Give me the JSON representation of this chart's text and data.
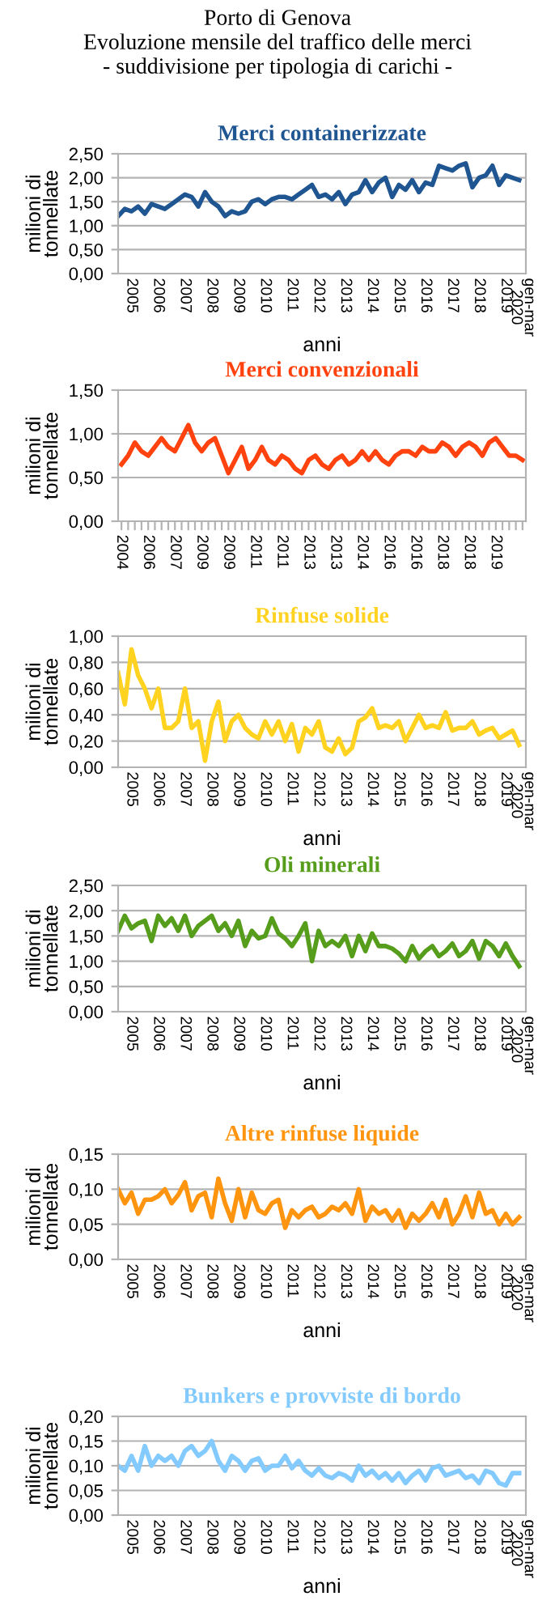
{
  "chart_data": [
    {
      "type": "line",
      "title": "Merci containerizzate",
      "annotations": [
        "Porto di Genova",
        "Evoluzione mensile del traffico delle merci",
        "- suddivisione per tipologia di carichi -"
      ],
      "xlabel": "anni",
      "ylabel": "milioni di tonnellate",
      "grid": "y",
      "xlim": [
        2005,
        2020.25
      ],
      "ylim": [
        0,
        2.5
      ],
      "yticks": [
        {
          "value": 0,
          "label": "0,00"
        },
        {
          "value": 0.5,
          "label": "0,50"
        },
        {
          "value": 1,
          "label": "1,00"
        },
        {
          "value": 1.5,
          "label": "1,50"
        },
        {
          "value": 2,
          "label": "2,00"
        },
        {
          "value": 2.5,
          "label": "2,50"
        }
      ],
      "xticks": [
        {
          "value": 2005.5,
          "label": "2005"
        },
        {
          "value": 2006.5,
          "label": "2006"
        },
        {
          "value": 2007.5,
          "label": "2007"
        },
        {
          "value": 2008.5,
          "label": "2008"
        },
        {
          "value": 2009.5,
          "label": "2009"
        },
        {
          "value": 2010.5,
          "label": "2010"
        },
        {
          "value": 2011.5,
          "label": "2011"
        },
        {
          "value": 2012.5,
          "label": "2012"
        },
        {
          "value": 2013.5,
          "label": "2013"
        },
        {
          "value": 2014.5,
          "label": "2014"
        },
        {
          "value": 2015.5,
          "label": "2015"
        },
        {
          "value": 2016.5,
          "label": "2016"
        },
        {
          "value": 2017.5,
          "label": "2017"
        },
        {
          "value": 2018.5,
          "label": "2018"
        },
        {
          "value": 2019.5,
          "label": "2019"
        },
        {
          "value": 2020.125,
          "label": "gen-mar\n2020"
        }
      ],
      "x": [
        2005,
        2005.25,
        2005.5,
        2005.75,
        2006,
        2006.25,
        2006.5,
        2006.75,
        2007,
        2007.25,
        2007.5,
        2007.75,
        2008,
        2008.25,
        2008.5,
        2008.75,
        2009,
        2009.25,
        2009.5,
        2009.75,
        2010,
        2010.25,
        2010.5,
        2010.75,
        2011,
        2011.25,
        2011.5,
        2011.75,
        2012,
        2012.25,
        2012.5,
        2012.75,
        2013,
        2013.25,
        2013.5,
        2013.75,
        2014,
        2014.25,
        2014.5,
        2014.75,
        2015,
        2015.25,
        2015.5,
        2015.75,
        2016,
        2016.25,
        2016.5,
        2016.75,
        2017,
        2017.25,
        2017.5,
        2017.75,
        2018,
        2018.25,
        2018.5,
        2018.75,
        2019,
        2019.25,
        2019.5,
        2019.75,
        2020
      ],
      "series": [
        {
          "color": "#1f5591",
          "values": [
            1.2,
            1.35,
            1.3,
            1.4,
            1.25,
            1.45,
            1.4,
            1.35,
            1.45,
            1.55,
            1.65,
            1.6,
            1.4,
            1.7,
            1.5,
            1.4,
            1.2,
            1.3,
            1.25,
            1.3,
            1.5,
            1.55,
            1.45,
            1.55,
            1.6,
            1.6,
            1.55,
            1.65,
            1.75,
            1.85,
            1.6,
            1.65,
            1.55,
            1.7,
            1.45,
            1.65,
            1.7,
            1.95,
            1.7,
            1.9,
            2.0,
            1.6,
            1.85,
            1.75,
            1.95,
            1.7,
            1.9,
            1.85,
            2.25,
            2.2,
            2.15,
            2.25,
            2.3,
            1.8,
            2.0,
            2.05,
            2.25,
            1.85,
            2.05,
            2.0,
            1.95
          ]
        }
      ]
    },
    {
      "type": "line",
      "title": "Merci convenzionali",
      "ylabel": "milioni di tonnellate",
      "grid": "y",
      "ylim": [
        0,
        1.5
      ],
      "yticks": [
        {
          "value": 0,
          "label": "0,00"
        },
        {
          "value": 0.5,
          "label": "0,50"
        },
        {
          "value": 1,
          "label": "1,00"
        },
        {
          "value": 1.5,
          "label": "1,50"
        }
      ],
      "categories": [
        "2004",
        null,
        null,
        null,
        "2006",
        null,
        null,
        null,
        "2007",
        null,
        null,
        null,
        "2009",
        null,
        null,
        null,
        "2009",
        null,
        null,
        null,
        "2011",
        null,
        null,
        null,
        "2011",
        null,
        null,
        null,
        "2013",
        null,
        null,
        null,
        "2013",
        null,
        null,
        null,
        "2014",
        null,
        null,
        null,
        "2016",
        null,
        null,
        null,
        "2016",
        null,
        null,
        null,
        "2018",
        null,
        null,
        null,
        "2018",
        null,
        null,
        null,
        "2019",
        null,
        null,
        null,
        null
      ],
      "series": [
        {
          "color": "#ff420e",
          "values": [
            0.65,
            0.75,
            0.9,
            0.8,
            0.75,
            0.85,
            0.95,
            0.85,
            0.8,
            0.95,
            1.1,
            0.9,
            0.8,
            0.9,
            0.95,
            0.75,
            0.55,
            0.7,
            0.85,
            0.6,
            0.7,
            0.85,
            0.7,
            0.65,
            0.75,
            0.7,
            0.6,
            0.55,
            0.7,
            0.75,
            0.65,
            0.6,
            0.7,
            0.75,
            0.65,
            0.7,
            0.8,
            0.7,
            0.8,
            0.7,
            0.65,
            0.75,
            0.8,
            0.8,
            0.75,
            0.85,
            0.8,
            0.8,
            0.9,
            0.85,
            0.75,
            0.85,
            0.9,
            0.85,
            0.75,
            0.9,
            0.95,
            0.85,
            0.75,
            0.75,
            0.7
          ]
        }
      ]
    },
    {
      "type": "line",
      "title": "Rinfuse solide",
      "xlabel": "anni",
      "ylabel": "milioni di tonnellate",
      "grid": "y",
      "xlim": [
        2005,
        2020.25
      ],
      "ylim": [
        0,
        1
      ],
      "yticks": [
        {
          "value": 0,
          "label": "0,00"
        },
        {
          "value": 0.2,
          "label": "0,20"
        },
        {
          "value": 0.4,
          "label": "0,40"
        },
        {
          "value": 0.6,
          "label": "0,60"
        },
        {
          "value": 0.8,
          "label": "0,80"
        },
        {
          "value": 1,
          "label": "1,00"
        }
      ],
      "xticks": [
        {
          "value": 2005.5,
          "label": "2005"
        },
        {
          "value": 2006.5,
          "label": "2006"
        },
        {
          "value": 2007.5,
          "label": "2007"
        },
        {
          "value": 2008.5,
          "label": "2008"
        },
        {
          "value": 2009.5,
          "label": "2009"
        },
        {
          "value": 2010.5,
          "label": "2010"
        },
        {
          "value": 2011.5,
          "label": "2011"
        },
        {
          "value": 2012.5,
          "label": "2012"
        },
        {
          "value": 2013.5,
          "label": "2013"
        },
        {
          "value": 2014.5,
          "label": "2014"
        },
        {
          "value": 2015.5,
          "label": "2015"
        },
        {
          "value": 2016.5,
          "label": "2016"
        },
        {
          "value": 2017.5,
          "label": "2017"
        },
        {
          "value": 2018.5,
          "label": "2018"
        },
        {
          "value": 2019.5,
          "label": "2019"
        },
        {
          "value": 2020.125,
          "label": "gen-mar\n2020"
        }
      ],
      "x": [
        2005,
        2005.25,
        2005.5,
        2005.75,
        2006,
        2006.25,
        2006.5,
        2006.75,
        2007,
        2007.25,
        2007.5,
        2007.75,
        2008,
        2008.25,
        2008.5,
        2008.75,
        2009,
        2009.25,
        2009.5,
        2009.75,
        2010,
        2010.25,
        2010.5,
        2010.75,
        2011,
        2011.25,
        2011.5,
        2011.75,
        2012,
        2012.25,
        2012.5,
        2012.75,
        2013,
        2013.25,
        2013.5,
        2013.75,
        2014,
        2014.25,
        2014.5,
        2014.75,
        2015,
        2015.25,
        2015.5,
        2015.75,
        2016,
        2016.25,
        2016.5,
        2016.75,
        2017,
        2017.25,
        2017.5,
        2017.75,
        2018,
        2018.25,
        2018.5,
        2018.75,
        2019,
        2019.25,
        2019.5,
        2019.75,
        2020
      ],
      "series": [
        {
          "color": "#ffd320",
          "values": [
            0.72,
            0.48,
            0.9,
            0.7,
            0.6,
            0.45,
            0.6,
            0.3,
            0.3,
            0.35,
            0.6,
            0.3,
            0.35,
            0.05,
            0.35,
            0.5,
            0.2,
            0.35,
            0.4,
            0.3,
            0.25,
            0.22,
            0.35,
            0.25,
            0.35,
            0.2,
            0.33,
            0.12,
            0.3,
            0.25,
            0.35,
            0.15,
            0.12,
            0.22,
            0.1,
            0.15,
            0.35,
            0.38,
            0.45,
            0.3,
            0.32,
            0.3,
            0.35,
            0.2,
            0.3,
            0.4,
            0.3,
            0.32,
            0.3,
            0.42,
            0.28,
            0.3,
            0.3,
            0.35,
            0.25,
            0.28,
            0.3,
            0.22,
            0.25,
            0.28,
            0.17
          ]
        }
      ]
    },
    {
      "type": "line",
      "title": "Oli minerali",
      "xlabel": "anni",
      "ylabel": "milioni di tonnellate",
      "grid": "y",
      "xlim": [
        2005,
        2020.25
      ],
      "ylim": [
        0,
        2.5
      ],
      "yticks": [
        {
          "value": 0,
          "label": "0,00"
        },
        {
          "value": 0.5,
          "label": "0,50"
        },
        {
          "value": 1,
          "label": "1,00"
        },
        {
          "value": 1.5,
          "label": "1,50"
        },
        {
          "value": 2,
          "label": "2,00"
        },
        {
          "value": 2.5,
          "label": "2,50"
        }
      ],
      "xticks": [
        {
          "value": 2005.5,
          "label": "2005"
        },
        {
          "value": 2006.5,
          "label": "2006"
        },
        {
          "value": 2007.5,
          "label": "2007"
        },
        {
          "value": 2008.5,
          "label": "2008"
        },
        {
          "value": 2009.5,
          "label": "2009"
        },
        {
          "value": 2010.5,
          "label": "2010"
        },
        {
          "value": 2011.5,
          "label": "2011"
        },
        {
          "value": 2012.5,
          "label": "2012"
        },
        {
          "value": 2013.5,
          "label": "2013"
        },
        {
          "value": 2014.5,
          "label": "2014"
        },
        {
          "value": 2015.5,
          "label": "2015"
        },
        {
          "value": 2016.5,
          "label": "2016"
        },
        {
          "value": 2017.5,
          "label": "2017"
        },
        {
          "value": 2018.5,
          "label": "2018"
        },
        {
          "value": 2019.5,
          "label": "2019"
        },
        {
          "value": 2020.125,
          "label": "gen-mar\n2020"
        }
      ],
      "x": [
        2005,
        2005.25,
        2005.5,
        2005.75,
        2006,
        2006.25,
        2006.5,
        2006.75,
        2007,
        2007.25,
        2007.5,
        2007.75,
        2008,
        2008.25,
        2008.5,
        2008.75,
        2009,
        2009.25,
        2009.5,
        2009.75,
        2010,
        2010.25,
        2010.5,
        2010.75,
        2011,
        2011.25,
        2011.5,
        2011.75,
        2012,
        2012.25,
        2012.5,
        2012.75,
        2013,
        2013.25,
        2013.5,
        2013.75,
        2014,
        2014.25,
        2014.5,
        2014.75,
        2015,
        2015.25,
        2015.5,
        2015.75,
        2016,
        2016.25,
        2016.5,
        2016.75,
        2017,
        2017.25,
        2017.5,
        2017.75,
        2018,
        2018.25,
        2018.5,
        2018.75,
        2019,
        2019.25,
        2019.5,
        2019.75,
        2020
      ],
      "series": [
        {
          "color": "#579d1c",
          "values": [
            1.6,
            1.9,
            1.65,
            1.75,
            1.8,
            1.4,
            1.9,
            1.7,
            1.85,
            1.6,
            1.9,
            1.5,
            1.7,
            1.8,
            1.9,
            1.6,
            1.75,
            1.5,
            1.8,
            1.3,
            1.6,
            1.45,
            1.5,
            1.85,
            1.55,
            1.45,
            1.3,
            1.5,
            1.75,
            1.0,
            1.6,
            1.3,
            1.4,
            1.3,
            1.5,
            1.1,
            1.5,
            1.2,
            1.55,
            1.3,
            1.3,
            1.25,
            1.15,
            1.0,
            1.3,
            1.05,
            1.2,
            1.3,
            1.1,
            1.2,
            1.35,
            1.1,
            1.2,
            1.4,
            1.05,
            1.4,
            1.3,
            1.1,
            1.35,
            1.1,
            0.9
          ]
        }
      ]
    },
    {
      "type": "line",
      "title": "Altre rinfuse liquide",
      "xlabel": "anni",
      "ylabel": "milioni di tonnellate",
      "grid": "y",
      "xlim": [
        2005,
        2020.25
      ],
      "ylim": [
        0,
        0.15
      ],
      "yticks": [
        {
          "value": 0,
          "label": "0,00"
        },
        {
          "value": 0.05,
          "label": "0,05"
        },
        {
          "value": 0.1,
          "label": "0,10"
        },
        {
          "value": 0.15,
          "label": "0,15"
        }
      ],
      "xticks": [
        {
          "value": 2005.5,
          "label": "2005"
        },
        {
          "value": 2006.5,
          "label": "2006"
        },
        {
          "value": 2007.5,
          "label": "2007"
        },
        {
          "value": 2008.5,
          "label": "2008"
        },
        {
          "value": 2009.5,
          "label": "2009"
        },
        {
          "value": 2010.5,
          "label": "2010"
        },
        {
          "value": 2011.5,
          "label": "2011"
        },
        {
          "value": 2012.5,
          "label": "2012"
        },
        {
          "value": 2013.5,
          "label": "2013"
        },
        {
          "value": 2014.5,
          "label": "2014"
        },
        {
          "value": 2015.5,
          "label": "2015"
        },
        {
          "value": 2016.5,
          "label": "2016"
        },
        {
          "value": 2017.5,
          "label": "2017"
        },
        {
          "value": 2018.5,
          "label": "2018"
        },
        {
          "value": 2019.5,
          "label": "2019"
        },
        {
          "value": 2020.125,
          "label": "gen-mar\n2020"
        }
      ],
      "x": [
        2005,
        2005.25,
        2005.5,
        2005.75,
        2006,
        2006.25,
        2006.5,
        2006.75,
        2007,
        2007.25,
        2007.5,
        2007.75,
        2008,
        2008.25,
        2008.5,
        2008.75,
        2009,
        2009.25,
        2009.5,
        2009.75,
        2010,
        2010.25,
        2010.5,
        2010.75,
        2011,
        2011.25,
        2011.5,
        2011.75,
        2012,
        2012.25,
        2012.5,
        2012.75,
        2013,
        2013.25,
        2013.5,
        2013.75,
        2014,
        2014.25,
        2014.5,
        2014.75,
        2015,
        2015.25,
        2015.5,
        2015.75,
        2016,
        2016.25,
        2016.5,
        2016.75,
        2017,
        2017.25,
        2017.5,
        2017.75,
        2018,
        2018.25,
        2018.5,
        2018.75,
        2019,
        2019.25,
        2019.5,
        2019.75,
        2020
      ],
      "series": [
        {
          "color": "#ff950e",
          "values": [
            0.1,
            0.08,
            0.095,
            0.065,
            0.085,
            0.085,
            0.09,
            0.1,
            0.08,
            0.092,
            0.11,
            0.07,
            0.09,
            0.095,
            0.06,
            0.115,
            0.08,
            0.055,
            0.1,
            0.06,
            0.095,
            0.07,
            0.065,
            0.08,
            0.085,
            0.045,
            0.07,
            0.06,
            0.07,
            0.075,
            0.06,
            0.065,
            0.075,
            0.07,
            0.08,
            0.065,
            0.1,
            0.055,
            0.075,
            0.065,
            0.07,
            0.055,
            0.07,
            0.045,
            0.065,
            0.055,
            0.065,
            0.08,
            0.06,
            0.085,
            0.05,
            0.065,
            0.09,
            0.06,
            0.095,
            0.065,
            0.07,
            0.05,
            0.065,
            0.05,
            0.06
          ]
        }
      ]
    },
    {
      "type": "line",
      "title": "Bunkers e provviste di bordo",
      "xlabel": "anni",
      "ylabel": "milioni di tonnellate",
      "grid": "y",
      "xlim": [
        2005,
        2020.25
      ],
      "ylim": [
        0,
        0.2
      ],
      "yticks": [
        {
          "value": 0,
          "label": "0,00"
        },
        {
          "value": 0.05,
          "label": "0,05"
        },
        {
          "value": 0.1,
          "label": "0,10"
        },
        {
          "value": 0.15,
          "label": "0,15"
        },
        {
          "value": 0.2,
          "label": "0,20"
        }
      ],
      "xticks": [
        {
          "value": 2005.5,
          "label": "2005"
        },
        {
          "value": 2006.5,
          "label": "2006"
        },
        {
          "value": 2007.5,
          "label": "2007"
        },
        {
          "value": 2008.5,
          "label": "2008"
        },
        {
          "value": 2009.5,
          "label": "2009"
        },
        {
          "value": 2010.5,
          "label": "2010"
        },
        {
          "value": 2011.5,
          "label": "2011"
        },
        {
          "value": 2012.5,
          "label": "2012"
        },
        {
          "value": 2013.5,
          "label": "2013"
        },
        {
          "value": 2014.5,
          "label": "2014"
        },
        {
          "value": 2015.5,
          "label": "2015"
        },
        {
          "value": 2016.5,
          "label": "2016"
        },
        {
          "value": 2017.5,
          "label": "2017"
        },
        {
          "value": 2018.5,
          "label": "2018"
        },
        {
          "value": 2019.5,
          "label": "2019"
        },
        {
          "value": 2020.125,
          "label": "gen-mar\n2020"
        }
      ],
      "x": [
        2005,
        2005.25,
        2005.5,
        2005.75,
        2006,
        2006.25,
        2006.5,
        2006.75,
        2007,
        2007.25,
        2007.5,
        2007.75,
        2008,
        2008.25,
        2008.5,
        2008.75,
        2009,
        2009.25,
        2009.5,
        2009.75,
        2010,
        2010.25,
        2010.5,
        2010.75,
        2011,
        2011.25,
        2011.5,
        2011.75,
        2012,
        2012.25,
        2012.5,
        2012.75,
        2013,
        2013.25,
        2013.5,
        2013.75,
        2014,
        2014.25,
        2014.5,
        2014.75,
        2015,
        2015.25,
        2015.5,
        2015.75,
        2016,
        2016.25,
        2016.5,
        2016.75,
        2017,
        2017.25,
        2017.5,
        2017.75,
        2018,
        2018.25,
        2018.5,
        2018.75,
        2019,
        2019.25,
        2019.5,
        2019.75,
        2020
      ],
      "series": [
        {
          "color": "#83caff",
          "values": [
            0.1,
            0.09,
            0.12,
            0.09,
            0.14,
            0.1,
            0.12,
            0.11,
            0.12,
            0.1,
            0.13,
            0.14,
            0.12,
            0.13,
            0.15,
            0.11,
            0.09,
            0.12,
            0.11,
            0.09,
            0.11,
            0.115,
            0.09,
            0.1,
            0.1,
            0.12,
            0.095,
            0.11,
            0.09,
            0.08,
            0.095,
            0.08,
            0.075,
            0.085,
            0.08,
            0.07,
            0.1,
            0.08,
            0.09,
            0.075,
            0.085,
            0.07,
            0.085,
            0.065,
            0.08,
            0.09,
            0.07,
            0.095,
            0.1,
            0.08,
            0.085,
            0.09,
            0.075,
            0.08,
            0.065,
            0.09,
            0.085,
            0.065,
            0.06,
            0.085,
            0.085
          ]
        }
      ]
    }
  ]
}
